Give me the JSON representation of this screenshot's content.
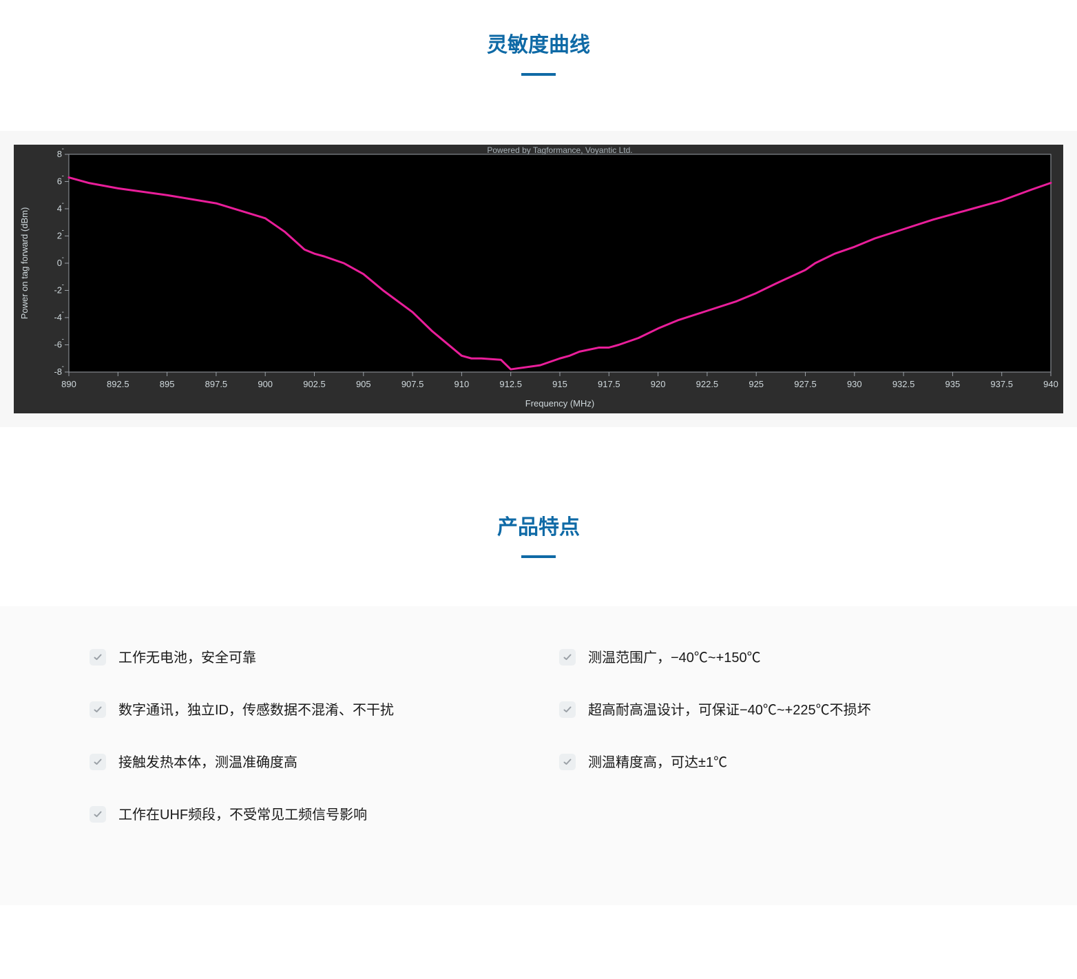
{
  "sections": {
    "sensitivity_title": "灵敏度曲线",
    "features_title": "产品特点"
  },
  "chart": {
    "type": "line",
    "credit": "Powered by Tagformance, Voyantic Ltd.",
    "xlabel": "Frequency (MHz)",
    "ylabel": "Power on tag forward (dBm)",
    "xlim": [
      890,
      940
    ],
    "ylim": [
      -8,
      8
    ],
    "xtick_step": 2.5,
    "ytick_step": 2,
    "xticks": [
      890,
      892.5,
      895,
      897.5,
      900,
      902.5,
      905,
      907.5,
      910,
      912.5,
      915,
      917.5,
      920,
      922.5,
      925,
      927.5,
      930,
      932.5,
      935,
      937.5,
      940
    ],
    "yticks": [
      -8,
      -6,
      -4,
      -2,
      0,
      2,
      4,
      6,
      8
    ],
    "background_color": "#2d2d2d",
    "plot_bg_color": "#000000",
    "grid_color": "#333333",
    "axis_border_color": "#9aa0a6",
    "tick_label_color": "#cfd8dc",
    "axis_label_color": "#cfd8dc",
    "credit_color": "#a8b2b8",
    "line_color": "#e91e9a",
    "line_width": 3,
    "label_fontsize": 13,
    "tick_fontsize": 13,
    "series": {
      "x": [
        890,
        891,
        892.5,
        895,
        897.5,
        900,
        901,
        902,
        902.5,
        903,
        904,
        905,
        906,
        907.5,
        908.5,
        909.5,
        910,
        910.5,
        911,
        912,
        912.5,
        913,
        914,
        915,
        915.5,
        916,
        917,
        917.5,
        918,
        919,
        920,
        921,
        922.5,
        924,
        925,
        926,
        927.5,
        928,
        929,
        930,
        931,
        932.5,
        934,
        935,
        936,
        937.5,
        939,
        940
      ],
      "y": [
        6.3,
        5.9,
        5.5,
        5.0,
        4.4,
        3.3,
        2.3,
        1.0,
        0.7,
        0.5,
        0.0,
        -0.8,
        -2.0,
        -3.6,
        -5.0,
        -6.2,
        -6.8,
        -7.0,
        -7.0,
        -7.1,
        -7.8,
        -7.7,
        -7.5,
        -7.0,
        -6.8,
        -6.5,
        -6.2,
        -6.2,
        -6.0,
        -5.5,
        -4.8,
        -4.2,
        -3.5,
        -2.8,
        -2.2,
        -1.5,
        -0.5,
        0.0,
        0.7,
        1.2,
        1.8,
        2.5,
        3.2,
        3.6,
        4.0,
        4.6,
        5.4,
        5.9
      ]
    }
  },
  "features": {
    "left": [
      "工作无电池，安全可靠",
      "数字通讯，独立ID，传感数据不混淆、不干扰",
      "接触发热本体，测温准确度高",
      "工作在UHF频段，不受常见工频信号影响"
    ],
    "right": [
      "测温范围广，−40℃~+150℃",
      "超高耐高温设计，可保证−40℃~+225℃不损坏",
      "测温精度高，可达±1℃"
    ]
  },
  "colors": {
    "title": "#0f6aa6",
    "underline": "#0f6aa6",
    "section_bg": "#fafafa",
    "chart_wrap_bg": "#f7f7f7",
    "check_bg": "#eceff1",
    "check_stroke": "#9aa0a6",
    "feature_text": "#1a1a1a"
  }
}
